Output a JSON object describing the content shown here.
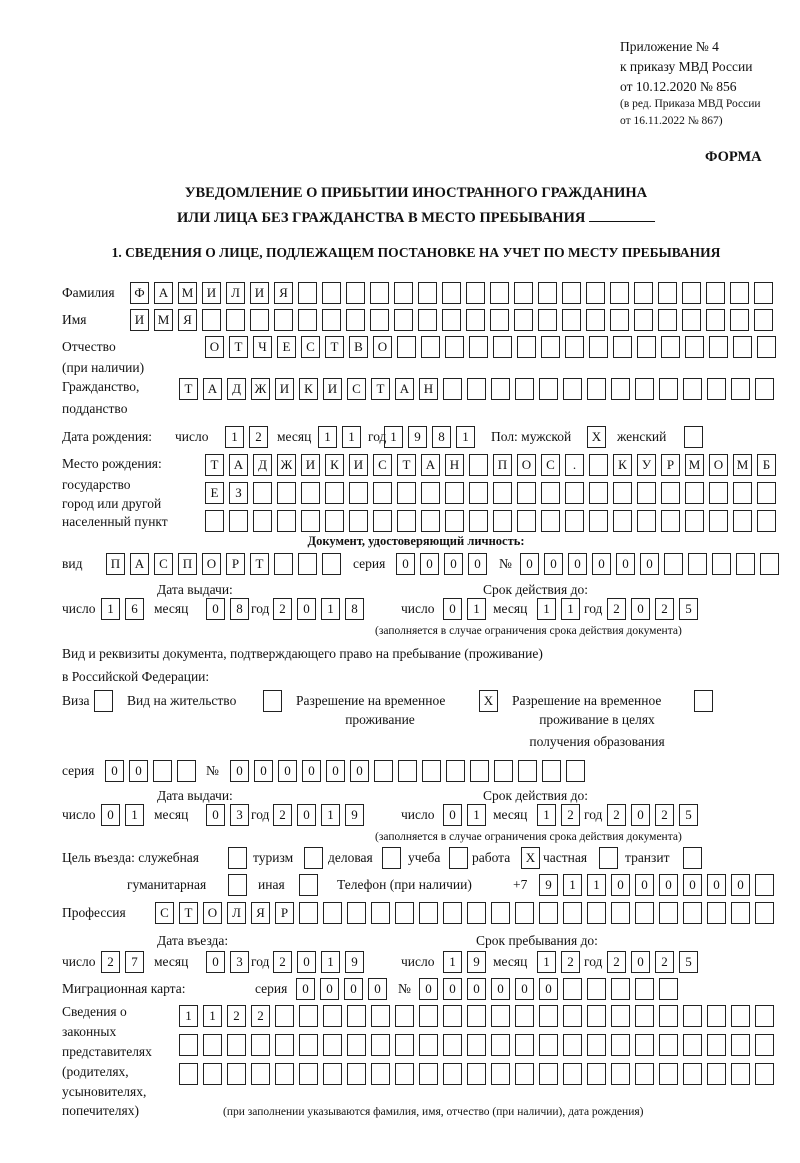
{
  "header": {
    "appendix": [
      "Приложение № 4",
      "к приказу МВД России",
      "от 10.12.2020 № 856"
    ],
    "edition": [
      "(в ред. Приказа МВД России",
      "от 16.11.2022 № 867)"
    ],
    "form_label": "ФОРМА",
    "title_line1": "УВЕДОМЛЕНИЕ О ПРИБЫТИИ ИНОСТРАННОГО ГРАЖДАНИНА",
    "title_line2": "ИЛИ ЛИЦА БЕЗ ГРАЖДАНСТВА В МЕСТО ПРЕБЫВАНИЯ"
  },
  "section1": {
    "heading": "1. СВЕДЕНИЯ О ЛИЦЕ, ПОДЛЕЖАЩЕМ ПОСТАНОВКЕ НА УЧЕТ ПО МЕСТУ ПРЕБЫВАНИЯ",
    "surname": {
      "label": "Фамилия",
      "value": "ФАМИЛИЯ"
    },
    "name": {
      "label": "Имя",
      "value": "ИМЯ"
    },
    "patronymic": {
      "label": "Отчество",
      "label2": "(при наличии)",
      "value": "ОТЧЕСТВО"
    },
    "citizenship": {
      "label": "Гражданство,",
      "label2": "подданство",
      "value": "ТАДЖИКИСТАН"
    },
    "birth_date": {
      "label": "Дата рождения:",
      "day_label": "число",
      "day": "12",
      "month_label": "месяц",
      "month": "11",
      "year_label": "год",
      "year": "1981"
    },
    "sex": {
      "label": "Пол: мужской",
      "male": "X",
      "female_label": "женский",
      "female": ""
    },
    "birth_place": {
      "labels": [
        "Место рождения:",
        "государство",
        "город или другой",
        "населенный пункт"
      ],
      "rows": [
        "ТАДЖИКИСТАН ПОС. КУРМОМБ",
        "ЕЗ",
        ""
      ]
    },
    "id_doc": {
      "heading": "Документ, удостоверяющий личность:",
      "type_label": "вид",
      "type": "ПАСПОРТ",
      "series_label": "серия",
      "series": "0000",
      "number_label": "№",
      "number": "000000",
      "issue_label": "Дата выдачи:",
      "valid_label": "Срок действия до:",
      "day_label": "число",
      "month_label": "месяц",
      "year_label": "год",
      "issue": {
        "day": "16",
        "month": "08",
        "year": "2018"
      },
      "valid": {
        "day": "01",
        "month": "11",
        "year": "2025"
      },
      "note": "(заполняется в случае ограничения срока действия документа)"
    },
    "stay_doc": {
      "heading1": "Вид и реквизиты документа, подтверждающего право на пребывание (проживание)",
      "heading2": "в Российской Федерации:",
      "visa_label": "Виза",
      "visa": "",
      "residence_label": "Вид на жительство",
      "residence": "",
      "trp_label1": "Разрешение на временное",
      "trp_label2": "проживание",
      "trp": "X",
      "trp_edu_label1": "Разрешение на временное",
      "trp_edu_label2": "проживание в целях",
      "trp_edu_label3": "получения образования",
      "trp_edu": "",
      "series_label": "серия",
      "series": "00",
      "number_label": "№",
      "number": "000000",
      "issue_label": "Дата выдачи:",
      "valid_label": "Срок действия до:",
      "day_label": "число",
      "month_label": "месяц",
      "year_label": "год",
      "issue": {
        "day": "01",
        "month": "03",
        "year": "2019"
      },
      "valid": {
        "day": "01",
        "month": "12",
        "year": "2025"
      },
      "note": "(заполняется в случае ограничения срока действия документа)"
    },
    "purpose": {
      "label": "Цель въезда: служебная",
      "service": "",
      "tourism_label": "туризм",
      "tourism": "",
      "business_label": "деловая",
      "business": "",
      "study_label": "учеба",
      "study": "",
      "work_label": "работа",
      "work": "X",
      "private_label": "частная",
      "private": "",
      "transit_label": "транзит",
      "transit": "",
      "humanitarian_label": "гуманитарная",
      "humanitarian": "",
      "other_label": "иная",
      "other": ""
    },
    "phone": {
      "label": "Телефон (при наличии)",
      "prefix": "+7",
      "value": "911000000"
    },
    "profession": {
      "label": "Профессия",
      "value": "СТОЛЯР"
    },
    "entry": {
      "entry_label": "Дата въезда:",
      "stay_label": "Срок пребывания до:",
      "day_label": "число",
      "month_label": "месяц",
      "year_label": "год",
      "entry_date": {
        "day": "27",
        "month": "03",
        "year": "2019"
      },
      "stay_until": {
        "day": "19",
        "month": "12",
        "year": "2025"
      }
    },
    "migration_card": {
      "label": "Миграционная карта:",
      "series_label": "серия",
      "series": "0000",
      "number_label": "№",
      "number": "000000"
    },
    "representatives": {
      "labels": [
        "Сведения о",
        "законных",
        "представителях",
        "(родителях,",
        "усыновителях,",
        "попечителях)"
      ],
      "rows": [
        "1122",
        "",
        ""
      ],
      "note": "(при заполнении указываются фамилия, имя, отчество (при наличии), дата рождения)"
    }
  }
}
